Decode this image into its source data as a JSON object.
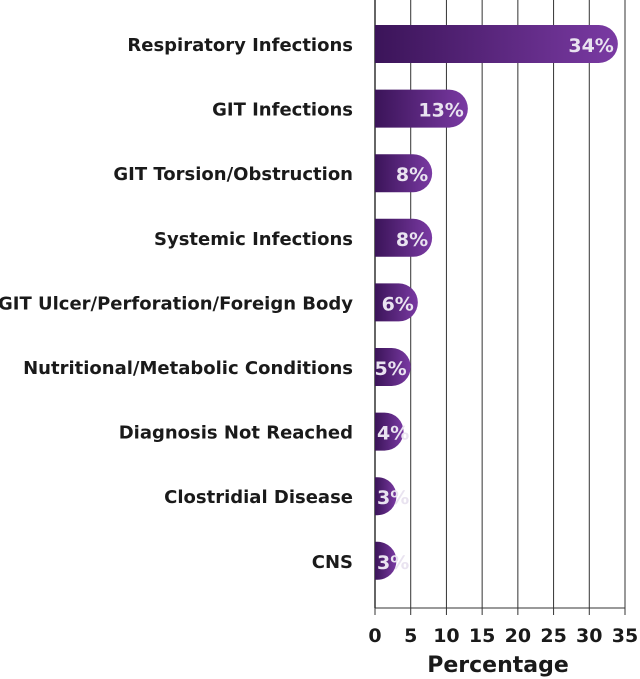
{
  "chart_data": {
    "type": "bar",
    "orientation": "horizontal",
    "categories": [
      "Respiratory Infections",
      "GIT Infections",
      "GIT Torsion/Obstruction",
      "Systemic Infections",
      "GIT Ulcer/Perforation/Foreign Body",
      "Nutritional/Metabolic Conditions",
      "Diagnosis Not Reached",
      "Clostridial Disease",
      "CNS"
    ],
    "values": [
      34,
      13,
      8,
      8,
      6,
      5,
      4,
      3,
      3
    ],
    "data_labels": [
      "34%",
      "13%",
      "8%",
      "8%",
      "6%",
      "5%",
      "4%",
      "3%",
      "3%"
    ],
    "xlabel": "Percentage",
    "ylabel": "",
    "xlim": [
      0,
      35
    ],
    "xticks": [
      0,
      5,
      10,
      15,
      20,
      25,
      30,
      35
    ],
    "grid": "vertical",
    "colors": {
      "bar_dark": "#3b1459",
      "bar_light": "#7a3aa3",
      "grid": "#333333",
      "label_text": "#e9e3f0"
    }
  }
}
